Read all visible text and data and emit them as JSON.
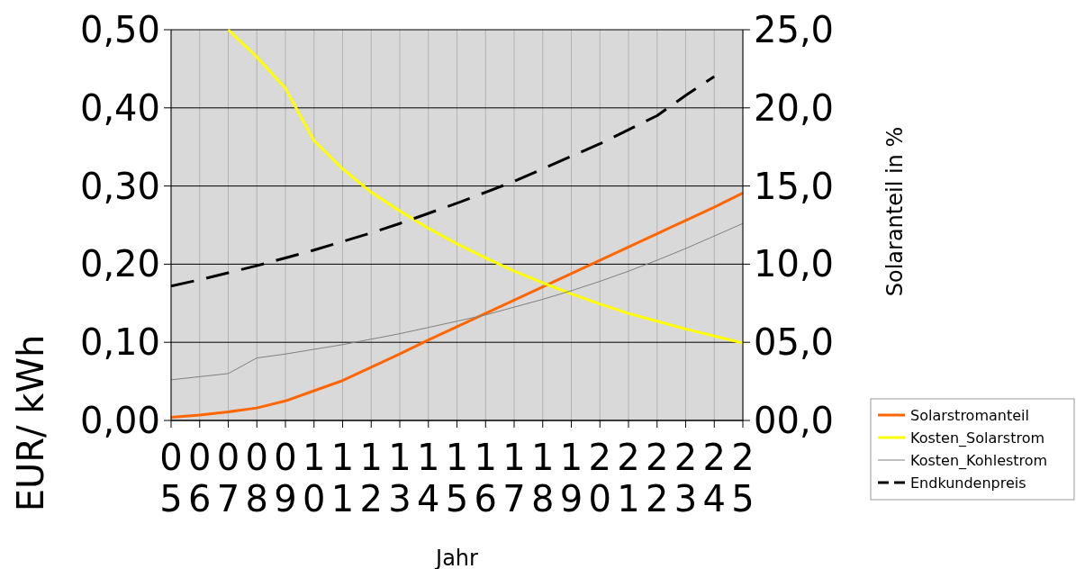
{
  "chart_data": {
    "type": "line",
    "xlabel": "Jahr",
    "ylabel": "EUR/ kWh",
    "y2label": "Solaranteil in %",
    "categories": [
      "05",
      "06",
      "07",
      "08",
      "09",
      "10",
      "11",
      "12",
      "13",
      "14",
      "15",
      "16",
      "17",
      "18",
      "19",
      "20",
      "21",
      "22",
      "23",
      "24",
      "25"
    ],
    "ylim": [
      0,
      0.5
    ],
    "yticks": [
      {
        "value": 0,
        "label": "0,00"
      },
      {
        "value": 0.1,
        "label": "0,10"
      },
      {
        "value": 0.2,
        "label": "0,20"
      },
      {
        "value": 0.3,
        "label": "0,30"
      },
      {
        "value": 0.4,
        "label": "0,40"
      },
      {
        "value": 0.5,
        "label": "0,50"
      }
    ],
    "y2lim": [
      0,
      25
    ],
    "y2ticks": [
      {
        "value": 0,
        "label": "00,0"
      },
      {
        "value": 5,
        "label": "05,0"
      },
      {
        "value": 10,
        "label": "10,0"
      },
      {
        "value": 15,
        "label": "15,0"
      },
      {
        "value": 20,
        "label": "20,0"
      },
      {
        "value": 25,
        "label": "25,0"
      }
    ],
    "grid": true,
    "legend": "bottom right",
    "series": [
      {
        "name": "Solarstromanteil",
        "color": "#ff6600",
        "axis": "y2",
        "line_style": "solid",
        "values": [
          0.2,
          0.35,
          0.55,
          0.8,
          1.25,
          1.9,
          2.55,
          3.4,
          4.25,
          5.15,
          6.0,
          6.85,
          7.7,
          8.55,
          9.4,
          10.25,
          11.1,
          11.95,
          12.8,
          13.65,
          14.55
        ]
      },
      {
        "name": "Kosten_Solarstrom",
        "color": "#ffff00",
        "line_style": "solid",
        "values": [
          null,
          null,
          0.5,
          0.465,
          0.425,
          0.358,
          0.322,
          0.292,
          0.268,
          0.246,
          0.226,
          0.208,
          0.191,
          0.176,
          0.162,
          0.149,
          0.137,
          0.127,
          0.117,
          0.108,
          0.099
        ]
      },
      {
        "name": "Kosten_Kohlestrom",
        "color": "#808080",
        "line_style": "solid",
        "values": [
          0.052,
          0.056,
          0.06,
          0.08,
          0.085,
          0.091,
          0.097,
          0.104,
          0.111,
          0.119,
          0.127,
          0.135,
          0.145,
          0.155,
          0.166,
          0.178,
          0.191,
          0.205,
          0.22,
          0.236,
          0.252
        ]
      },
      {
        "name": "Endkundenpreis",
        "color": "#000000",
        "line_style": "dashed",
        "values": [
          0.172,
          0.18,
          0.189,
          0.198,
          0.208,
          0.218,
          0.229,
          0.24,
          0.252,
          0.265,
          0.278,
          0.292,
          0.306,
          0.322,
          0.338,
          0.354,
          0.372,
          0.39,
          0.416,
          0.44,
          null
        ]
      }
    ]
  }
}
